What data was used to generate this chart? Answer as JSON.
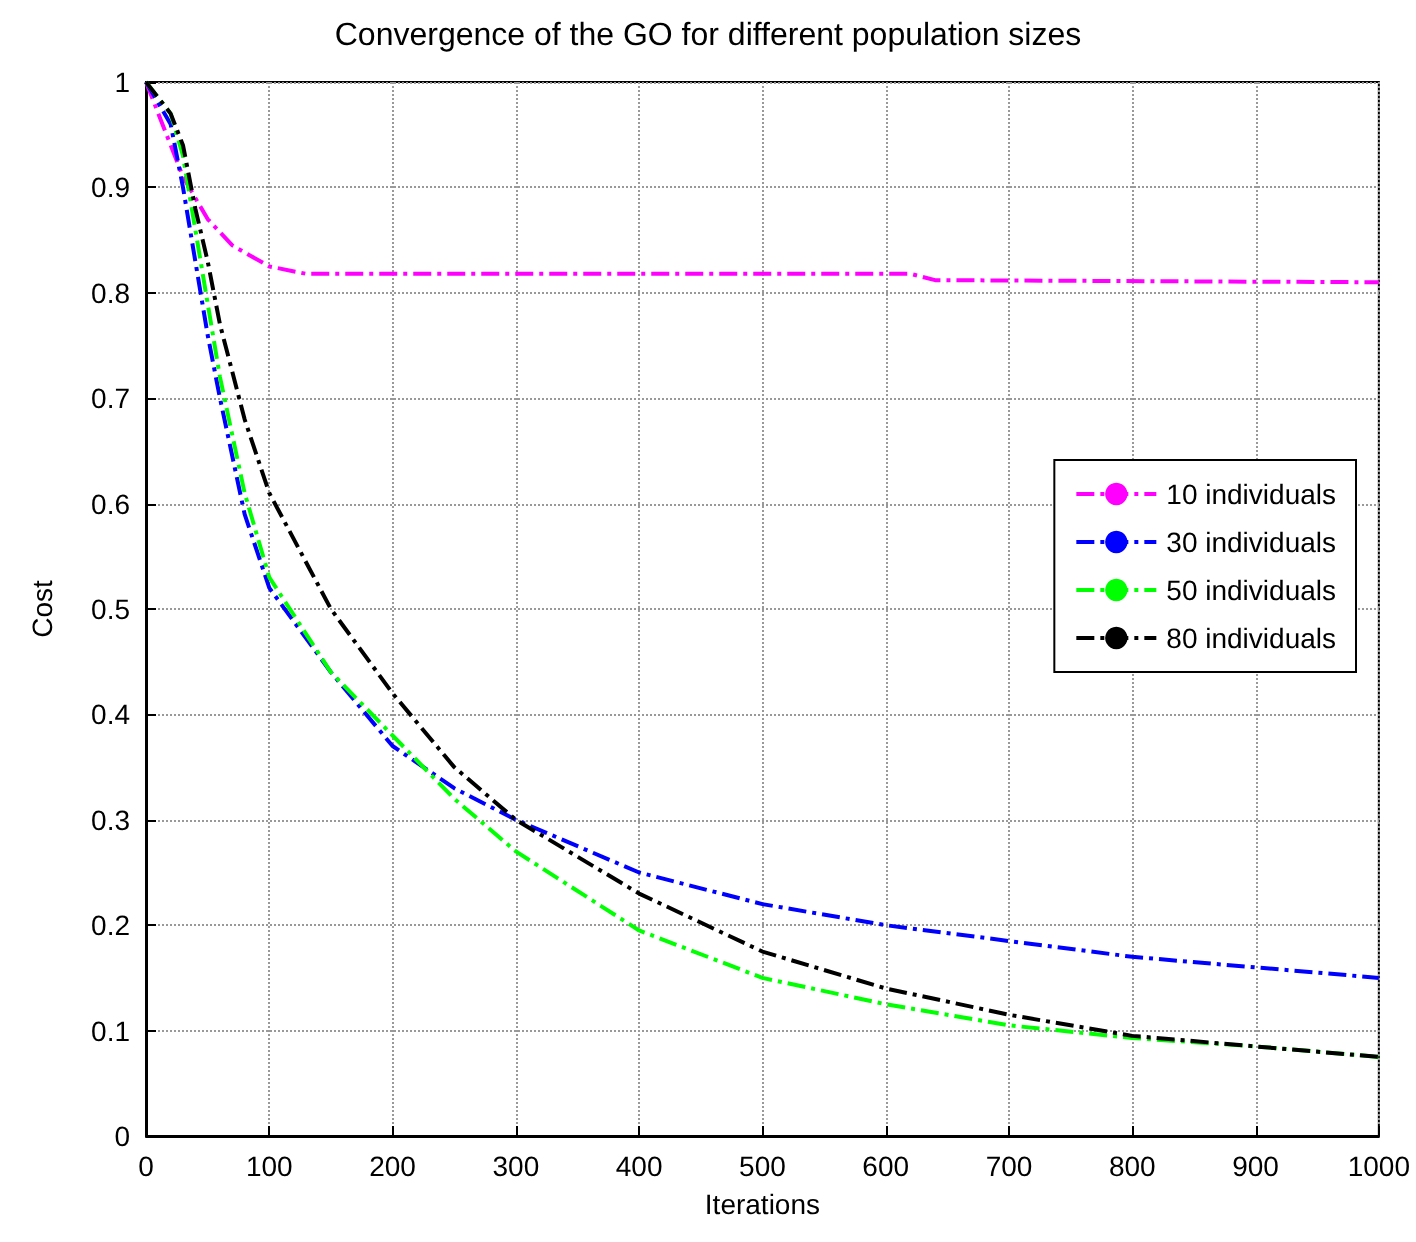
{
  "chart_data": {
    "type": "line",
    "title": "Convergence of the GO for different population sizes",
    "xlabel": "Iterations",
    "ylabel": "Cost",
    "xlim": [
      0,
      1000
    ],
    "xticks": [
      0,
      100,
      200,
      300,
      400,
      500,
      600,
      700,
      800,
      900,
      1000
    ],
    "ylim": [
      0,
      1
    ],
    "yticks": [
      0,
      0.1,
      0.2,
      0.3,
      0.4,
      0.5,
      0.6,
      0.7,
      0.8,
      0.9,
      1
    ],
    "grid": true,
    "legend": "right",
    "marker": "none",
    "line_style": "dashed",
    "series": [
      {
        "name": "10 individuals",
        "color": "#ff00ff",
        "x": [
          0,
          10,
          20,
          30,
          50,
          70,
          100,
          130,
          620,
          640,
          1000
        ],
        "values": [
          1,
          0.97,
          0.94,
          0.91,
          0.87,
          0.845,
          0.825,
          0.818,
          0.818,
          0.812,
          0.81
        ]
      },
      {
        "name": "30 individuals",
        "color": "#0000ff",
        "x": [
          0,
          10,
          20,
          30,
          40,
          50,
          60,
          80,
          100,
          150,
          200,
          250,
          300,
          400,
          500,
          600,
          700,
          800,
          900,
          1000
        ],
        "values": [
          1,
          0.98,
          0.96,
          0.9,
          0.83,
          0.76,
          0.7,
          0.59,
          0.52,
          0.44,
          0.37,
          0.33,
          0.3,
          0.25,
          0.22,
          0.2,
          0.185,
          0.17,
          0.16,
          0.15
        ]
      },
      {
        "name": "50 individuals",
        "color": "#00ff00",
        "x": [
          0,
          20,
          30,
          40,
          50,
          60,
          80,
          100,
          150,
          200,
          250,
          300,
          400,
          500,
          600,
          700,
          800,
          900,
          1000
        ],
        "values": [
          1,
          0.97,
          0.93,
          0.86,
          0.79,
          0.72,
          0.61,
          0.53,
          0.44,
          0.38,
          0.32,
          0.27,
          0.195,
          0.15,
          0.125,
          0.105,
          0.093,
          0.085,
          0.075
        ]
      },
      {
        "name": "80 individuals",
        "color": "#000000",
        "x": [
          0,
          20,
          30,
          40,
          50,
          60,
          80,
          100,
          150,
          200,
          250,
          300,
          400,
          500,
          600,
          700,
          800,
          900,
          1000
        ],
        "values": [
          1,
          0.97,
          0.94,
          0.88,
          0.83,
          0.77,
          0.68,
          0.61,
          0.5,
          0.42,
          0.35,
          0.3,
          0.23,
          0.175,
          0.14,
          0.115,
          0.095,
          0.085,
          0.075
        ]
      }
    ]
  }
}
